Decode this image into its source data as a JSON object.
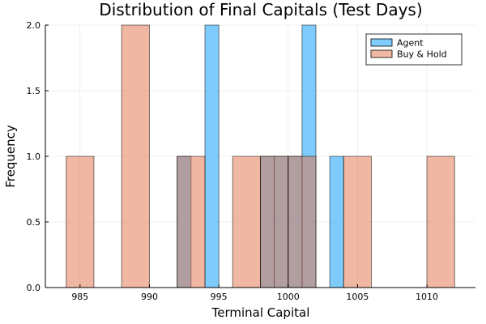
{
  "chart_data": {
    "type": "bar",
    "title": "Distribution of Final Capitals (Test Days)",
    "xlabel": "Terminal Capital",
    "ylabel": "Frequency",
    "xlim": [
      982.5,
      1013.5
    ],
    "ylim": [
      0,
      2
    ],
    "xticks": [
      985,
      990,
      995,
      1000,
      1005,
      1010
    ],
    "yticks": [
      0.0,
      0.5,
      1.0,
      1.5,
      2.0
    ],
    "xtick_labels": [
      "985",
      "990",
      "995",
      "1000",
      "1005",
      "1010"
    ],
    "ytick_labels": [
      "0.0",
      "0.5",
      "1.0",
      "1.5",
      "2.0"
    ],
    "grid": true,
    "legend_position": "top-right",
    "series": [
      {
        "name": "Agent",
        "color": "#009AFA",
        "bins": [
          {
            "x0": 992,
            "x1": 993,
            "count": 1
          },
          {
            "x0": 994,
            "x1": 995,
            "count": 2
          },
          {
            "x0": 998,
            "x1": 999,
            "count": 1
          },
          {
            "x0": 999,
            "x1": 1000,
            "count": 1
          },
          {
            "x0": 1000,
            "x1": 1001,
            "count": 1
          },
          {
            "x0": 1001,
            "x1": 1002,
            "count": 2
          },
          {
            "x0": 1003,
            "x1": 1004,
            "count": 1
          }
        ]
      },
      {
        "name": "Buy & Hold",
        "color": "#E26F46",
        "bins": [
          {
            "x0": 984,
            "x1": 986,
            "count": 1
          },
          {
            "x0": 988,
            "x1": 990,
            "count": 2
          },
          {
            "x0": 992,
            "x1": 994,
            "count": 1
          },
          {
            "x0": 996,
            "x1": 998,
            "count": 1
          },
          {
            "x0": 998,
            "x1": 1000,
            "count": 1
          },
          {
            "x0": 1000,
            "x1": 1002,
            "count": 1
          },
          {
            "x0": 1004,
            "x1": 1006,
            "count": 1
          },
          {
            "x0": 1010,
            "x1": 1012,
            "count": 1
          }
        ]
      }
    ]
  }
}
